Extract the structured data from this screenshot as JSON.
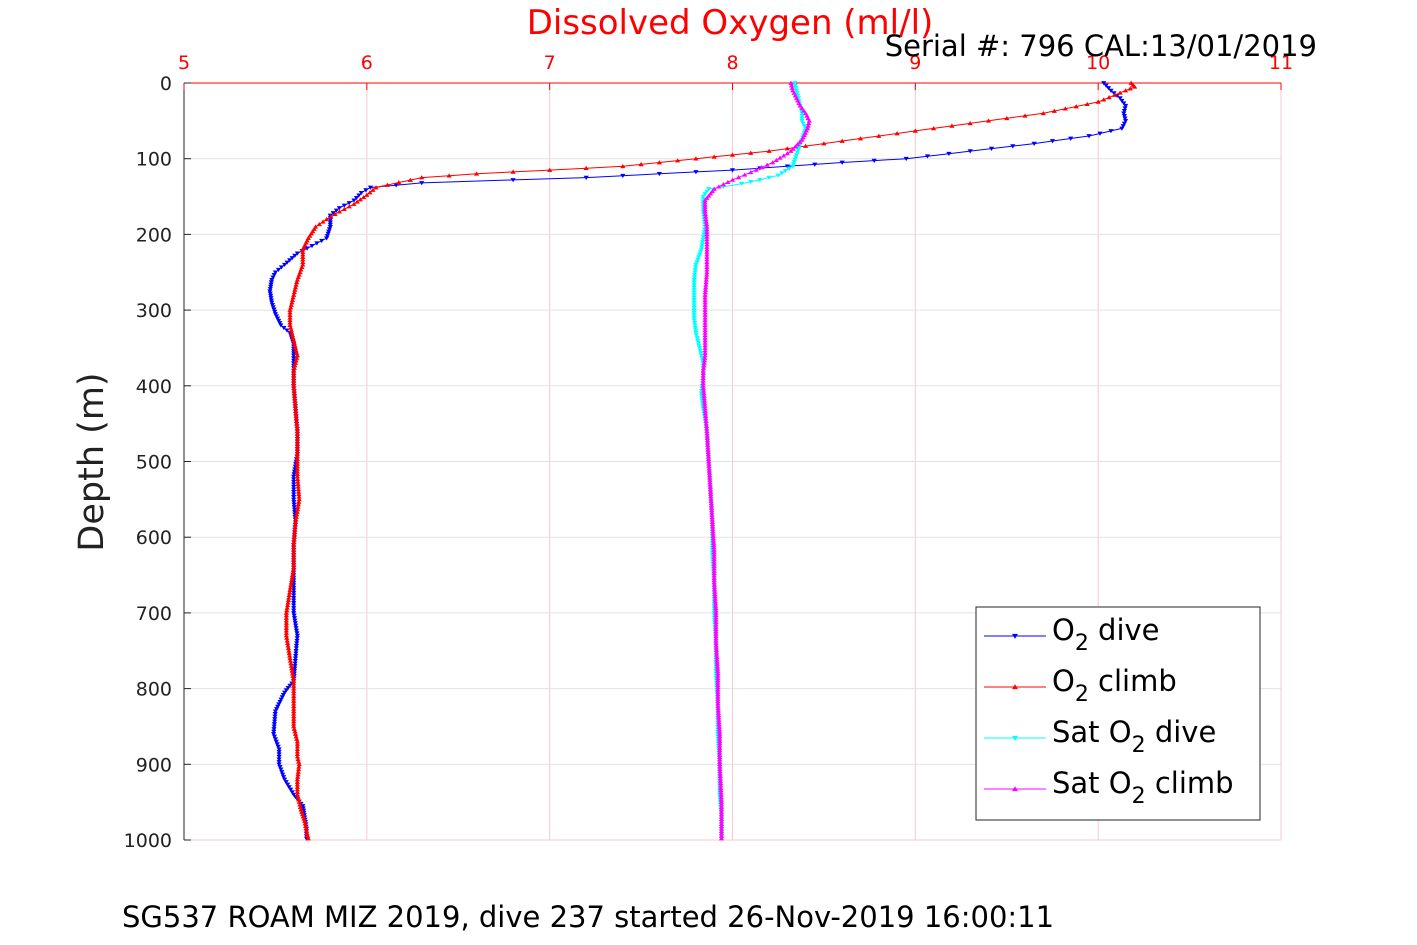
{
  "colors": {
    "accent": "#ff0000",
    "grid": "#f4c8cf",
    "axis_top": "#ff0000",
    "axis_left": "#262626"
  },
  "chart_data": {
    "type": "scatter",
    "title": "Dissolved Oxygen (ml/l)",
    "serial_text": "Serial #: 796  CAL:13/01/2019",
    "ylabel": "Depth (m)",
    "footer": "SG537 ROAM MIZ 2019, dive 237 started 26-Nov-2019 16:00:11",
    "xlim": [
      5,
      11
    ],
    "ylim": [
      0,
      1000
    ],
    "y_reversed": true,
    "x_axis_position": "top",
    "x_ticks": [
      "5",
      "6",
      "7",
      "8",
      "9",
      "10",
      "11"
    ],
    "y_ticks": [
      "0",
      "100",
      "200",
      "300",
      "400",
      "500",
      "600",
      "700",
      "800",
      "900",
      "1000"
    ],
    "grid": true,
    "legend_position": "bottom-right",
    "legend": [
      {
        "prefix": "O",
        "sub": "2",
        "suffix": " dive"
      },
      {
        "prefix": "O",
        "sub": "2",
        "suffix": " climb"
      },
      {
        "prefix": "Sat O",
        "sub": "2",
        "suffix": " dive"
      },
      {
        "prefix": "Sat O",
        "sub": "2",
        "suffix": " climb"
      }
    ],
    "series": [
      {
        "name": "O2 dive",
        "color": "#0000ff",
        "marker": "triangle-down",
        "x": [
          10.03,
          10.07,
          10.12,
          10.15,
          10.14,
          10.15,
          10.13,
          9.95,
          9.65,
          9.3,
          8.95,
          8.6,
          8.3,
          8.0,
          7.6,
          7.2,
          6.8,
          6.3,
          6.02,
          5.97,
          5.93,
          5.85,
          5.8,
          5.8,
          5.78,
          5.62,
          5.55,
          5.5,
          5.48,
          5.47,
          5.48,
          5.5,
          5.53,
          5.58,
          5.6,
          5.6,
          5.6,
          5.6,
          5.61,
          5.62,
          5.62,
          5.6,
          5.6,
          5.61,
          5.6,
          5.6,
          5.6,
          5.6,
          5.62,
          5.61,
          5.6,
          5.55,
          5.5,
          5.49,
          5.52,
          5.52,
          5.55,
          5.6,
          5.65,
          5.66,
          5.67,
          5.67
        ],
        "y": [
          0,
          10,
          20,
          30,
          40,
          50,
          60,
          70,
          80,
          90,
          100,
          105,
          110,
          115,
          120,
          125,
          128,
          132,
          138,
          145,
          155,
          165,
          175,
          190,
          205,
          225,
          240,
          250,
          260,
          275,
          290,
          305,
          320,
          330,
          345,
          360,
          380,
          400,
          430,
          460,
          490,
          520,
          550,
          580,
          610,
          640,
          670,
          700,
          730,
          760,
          790,
          805,
          830,
          860,
          880,
          900,
          920,
          940,
          955,
          970,
          985,
          998
        ]
      },
      {
        "name": "O2 climb",
        "color": "#ff0000",
        "marker": "triangle-up",
        "x": [
          10.18,
          10.2,
          10.15,
          10.0,
          9.7,
          9.4,
          9.1,
          8.8,
          8.5,
          8.2,
          8.0,
          7.8,
          7.6,
          7.4,
          7.0,
          6.6,
          6.3,
          6.05,
          6.0,
          5.93,
          5.85,
          5.78,
          5.72,
          5.68,
          5.65,
          5.65,
          5.62,
          5.6,
          5.58,
          5.58,
          5.6,
          5.62,
          5.6,
          5.6,
          5.61,
          5.62,
          5.62,
          5.62,
          5.63,
          5.61,
          5.6,
          5.6,
          5.58,
          5.56,
          5.56,
          5.58,
          5.6,
          5.6,
          5.6,
          5.6,
          5.62,
          5.62,
          5.63,
          5.62,
          5.62,
          5.64,
          5.66,
          5.67,
          5.68
        ],
        "y": [
          0,
          5,
          10,
          25,
          40,
          50,
          60,
          70,
          80,
          90,
          95,
          100,
          105,
          110,
          115,
          120,
          125,
          138,
          148,
          160,
          170,
          180,
          190,
          205,
          220,
          240,
          260,
          280,
          300,
          320,
          340,
          360,
          380,
          400,
          430,
          460,
          490,
          520,
          550,
          580,
          610,
          640,
          670,
          700,
          730,
          760,
          790,
          810,
          830,
          850,
          870,
          890,
          900,
          920,
          940,
          960,
          975,
          988,
          998
        ]
      },
      {
        "name": "Sat O2 dive",
        "color": "#00ffff",
        "marker": "triangle-down",
        "x": [
          8.34,
          8.35,
          8.36,
          8.37,
          8.38,
          8.38,
          8.4,
          8.38,
          8.35,
          8.33,
          8.25,
          8.15,
          8.05,
          7.95,
          7.87,
          7.84,
          7.84,
          7.85,
          7.83,
          7.8,
          7.79,
          7.79,
          7.79,
          7.8,
          7.82,
          7.84,
          7.84,
          7.83,
          7.84,
          7.86,
          7.87,
          7.88,
          7.89,
          7.89,
          7.9,
          7.9,
          7.91,
          7.91,
          7.92,
          7.92,
          7.93,
          7.93,
          7.94,
          7.94
        ],
        "y": [
          0,
          10,
          20,
          30,
          40,
          50,
          60,
          75,
          95,
          110,
          122,
          128,
          133,
          137,
          140,
          150,
          170,
          190,
          220,
          240,
          260,
          290,
          310,
          330,
          350,
          370,
          390,
          410,
          430,
          460,
          500,
          540,
          580,
          620,
          660,
          700,
          740,
          780,
          820,
          860,
          900,
          940,
          970,
          998
        ]
      },
      {
        "name": "Sat O2 climb",
        "color": "#ff00ff",
        "marker": "triangle-up",
        "x": [
          8.32,
          8.33,
          8.35,
          8.37,
          8.4,
          8.42,
          8.41,
          8.38,
          8.32,
          8.22,
          8.1,
          8.0,
          7.9,
          7.85,
          7.85,
          7.86,
          7.86,
          7.86,
          7.85,
          7.85,
          7.85,
          7.85,
          7.84,
          7.84,
          7.85,
          7.86,
          7.87,
          7.88,
          7.89,
          7.9,
          7.9,
          7.91,
          7.91,
          7.92,
          7.92,
          7.93,
          7.93,
          7.94,
          7.94
        ],
        "y": [
          0,
          10,
          20,
          30,
          40,
          50,
          60,
          75,
          90,
          105,
          118,
          128,
          140,
          155,
          170,
          190,
          220,
          250,
          280,
          310,
          340,
          360,
          380,
          400,
          430,
          460,
          500,
          540,
          580,
          620,
          660,
          700,
          740,
          780,
          820,
          860,
          900,
          950,
          998
        ]
      }
    ]
  }
}
